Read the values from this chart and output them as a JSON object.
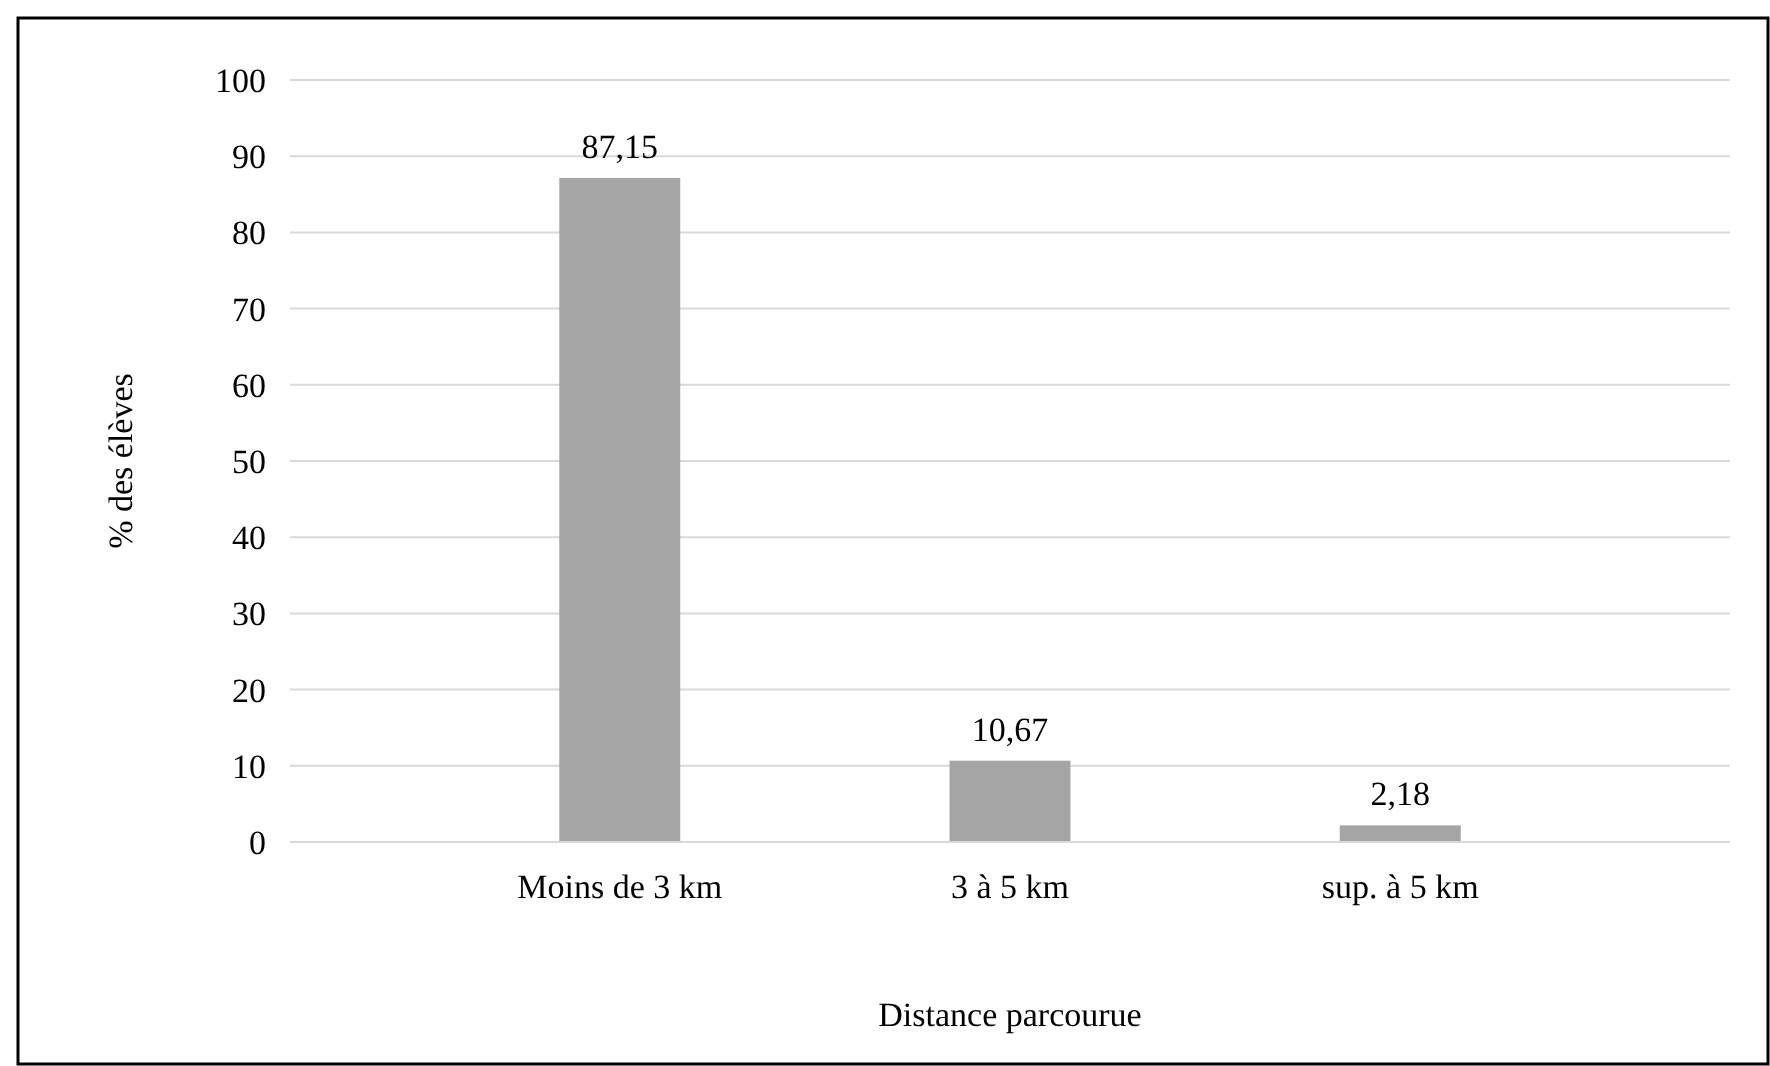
{
  "chart_data": {
    "type": "bar",
    "xlabel": "Distance parcourue",
    "ylabel": "% des élèves",
    "categories": [
      "Moins de 3 km",
      "3 à 5 km",
      "sup. à 5 km"
    ],
    "values": [
      87.15,
      10.67,
      2.18
    ],
    "value_labels": [
      "87,15",
      "10,67",
      "2,18"
    ],
    "color": "#a5a5a5",
    "ylim": [
      0,
      100
    ],
    "yticks": [
      0,
      10,
      20,
      30,
      40,
      50,
      60,
      70,
      80,
      90,
      100
    ],
    "grid": "y"
  }
}
